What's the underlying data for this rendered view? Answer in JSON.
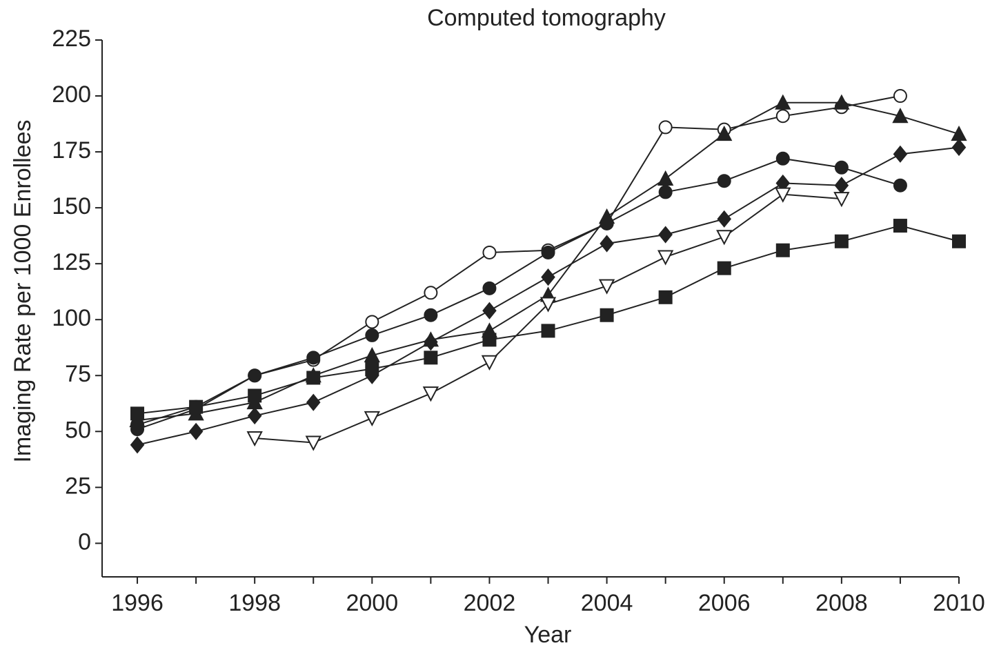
{
  "chart_data": {
    "type": "line",
    "title": "Computed tomography",
    "x_label": "Year",
    "y_label": "Imaging Rate per 1000 Enrollees",
    "x": [
      1996,
      1997,
      1998,
      1999,
      2000,
      2001,
      2002,
      2003,
      2004,
      2005,
      2006,
      2007,
      2008,
      2009,
      2010
    ],
    "xlim": [
      1995.4,
      2010
    ],
    "xticks": [
      1996,
      1998,
      2000,
      2002,
      2004,
      2006,
      2008,
      2010
    ],
    "xminor_ticks": [
      1997,
      1999,
      2001,
      2003,
      2005,
      2007,
      2009
    ],
    "ylim": [
      -15,
      225
    ],
    "yticks": [
      0,
      25,
      50,
      75,
      100,
      125,
      150,
      175,
      200,
      225
    ],
    "grid": false,
    "series": [
      {
        "color": "#222222",
        "marker": "circle-open",
        "values": [
          53,
          61,
          75,
          82,
          99,
          112,
          130,
          131,
          143,
          186,
          185,
          191,
          195,
          200,
          null
        ]
      },
      {
        "color": "#222222",
        "marker": "circle",
        "values": [
          51,
          60,
          75,
          83,
          93,
          102,
          114,
          130,
          143,
          157,
          162,
          172,
          168,
          160,
          null
        ]
      },
      {
        "color": "#222222",
        "marker": "triangle",
        "values": [
          55,
          58,
          63,
          75,
          84,
          91,
          95,
          111,
          146,
          163,
          183,
          197,
          197,
          191,
          183
        ]
      },
      {
        "color": "#222222",
        "marker": "diamond",
        "values": [
          44,
          50,
          57,
          63,
          75,
          90,
          104,
          119,
          134,
          138,
          145,
          161,
          160,
          174,
          177
        ]
      },
      {
        "color": "#222222",
        "marker": "triangle-down-open",
        "values": [
          null,
          null,
          47,
          45,
          56,
          67,
          81,
          107,
          115,
          128,
          137,
          156,
          154,
          null,
          null
        ]
      },
      {
        "color": "#222222",
        "marker": "square",
        "values": [
          58,
          61,
          66,
          74,
          78,
          83,
          91,
          95,
          102,
          110,
          123,
          131,
          135,
          142,
          135
        ]
      }
    ]
  }
}
